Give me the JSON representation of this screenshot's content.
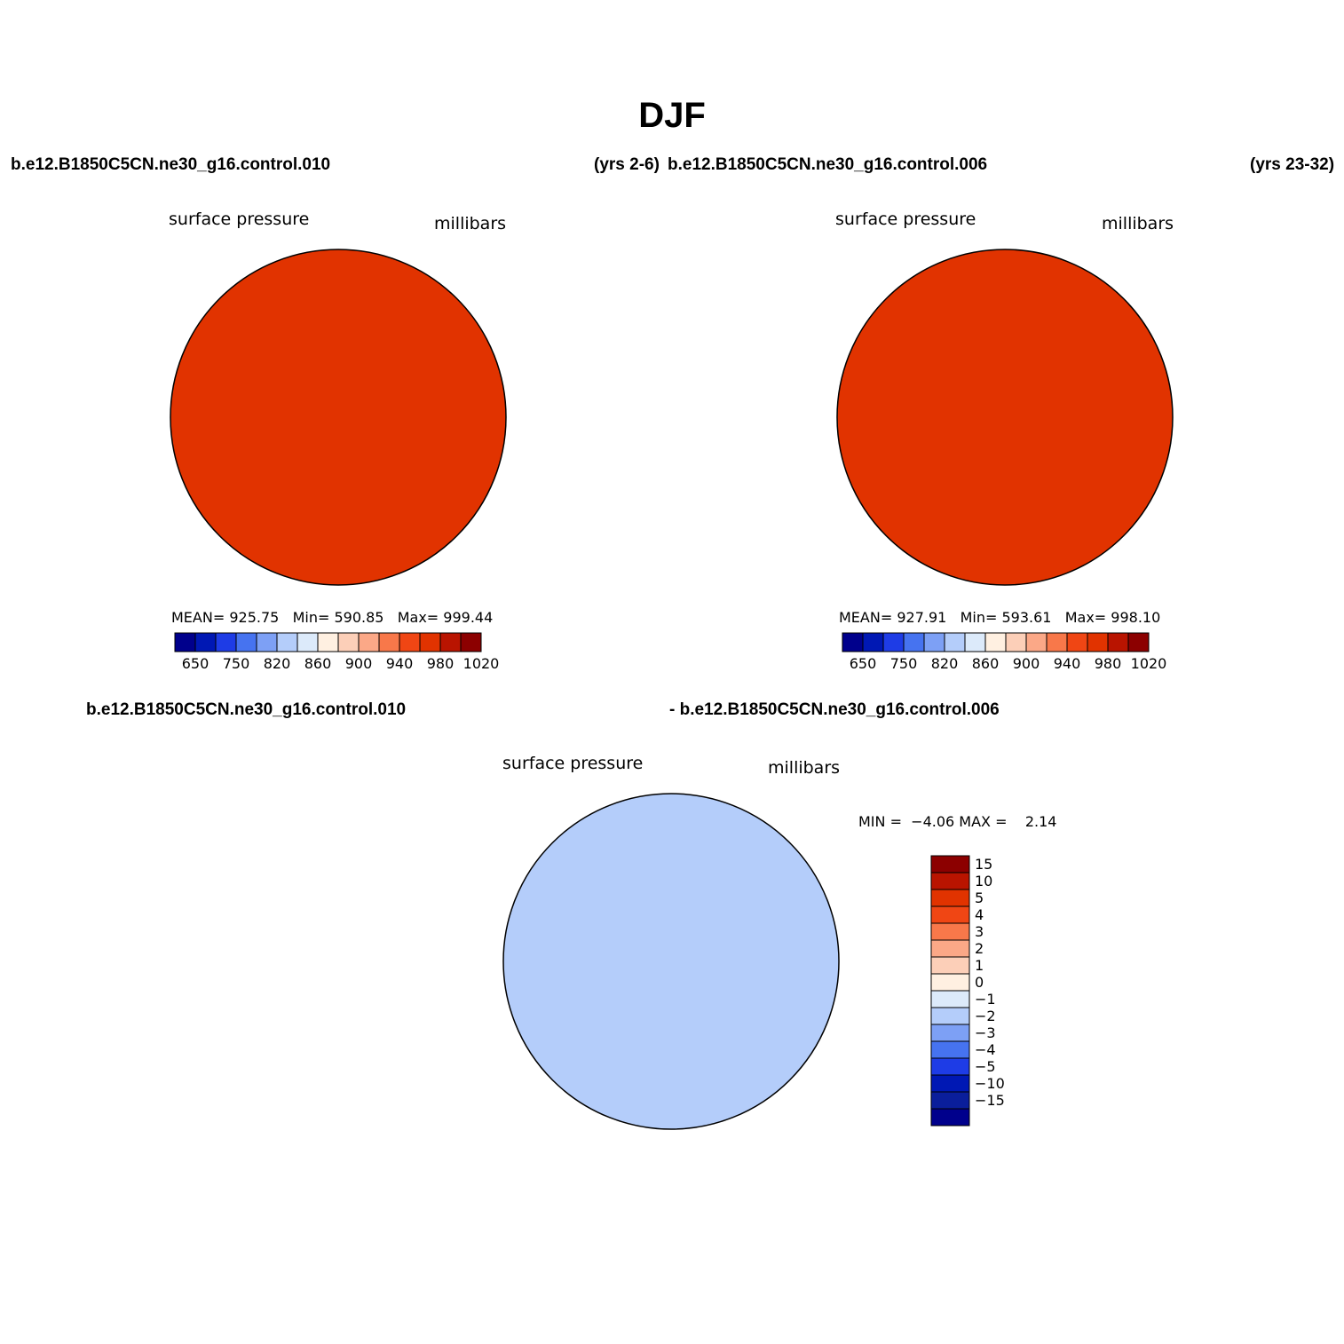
{
  "title": "DJF",
  "case_labels": {
    "top_left_case": "b.e12.B1850C5CN.ne30_g16.control.010",
    "top_left_years": "(yrs 2-6)",
    "top_right_case": "b.e12.B1850C5CN.ne30_g16.control.006",
    "top_right_years": "(yrs 23-32)",
    "diff_case_a": "b.e12.B1850C5CN.ne30_g16.control.010",
    "diff_case_b": "- b.e12.B1850C5CN.ne30_g16.control.006"
  },
  "panels": [
    {
      "variable": "surface pressure",
      "units": "millibars",
      "stats": {
        "mean_label": "MEAN=",
        "mean": "925.75",
        "min_label": "Min=",
        "min": "590.85",
        "max_label": "Max=",
        "max": "999.44"
      }
    },
    {
      "variable": "surface pressure",
      "units": "millibars",
      "stats": {
        "mean_label": "MEAN=",
        "mean": "927.91",
        "min_label": "Min=",
        "min": "593.61",
        "max_label": "Max=",
        "max": "998.10"
      }
    },
    {
      "variable": "surface pressure",
      "units": "millibars",
      "stats": {
        "min_label": "MIN =",
        "min": "−4.06",
        "max_label": "MAX =",
        "max": "2.14"
      }
    }
  ],
  "colorbar_top": {
    "colors": [
      "#00008c",
      "#0018b4",
      "#1e3ce6",
      "#4673f0",
      "#7da0f5",
      "#b4cdfa",
      "#dceafa",
      "#fff0e1",
      "#fccfb8",
      "#fba887",
      "#f8784a",
      "#f04614",
      "#e13300",
      "#b91400",
      "#8c0000"
    ],
    "labels": [
      "650",
      "750",
      "820",
      "860",
      "900",
      "940",
      "980",
      "1020"
    ]
  },
  "colorbar_diff": {
    "colors": [
      "#8c0000",
      "#b91400",
      "#e13300",
      "#f04614",
      "#f8784a",
      "#fba887",
      "#fccfb8",
      "#fff0e1",
      "#dceafa",
      "#b4cdfa",
      "#7da0f5",
      "#4673f0",
      "#1e3ce6",
      "#0018b4",
      "#0a1e9b",
      "#00008c"
    ],
    "labels": [
      "15",
      "10",
      "5",
      "4",
      "3",
      "2",
      "1",
      "0",
      "−1",
      "−2",
      "−3",
      "−4",
      "−5",
      "−10",
      "−15"
    ]
  },
  "colors": {
    "ocean_field": "#e13300",
    "diff_background": "#b4cdfa"
  }
}
